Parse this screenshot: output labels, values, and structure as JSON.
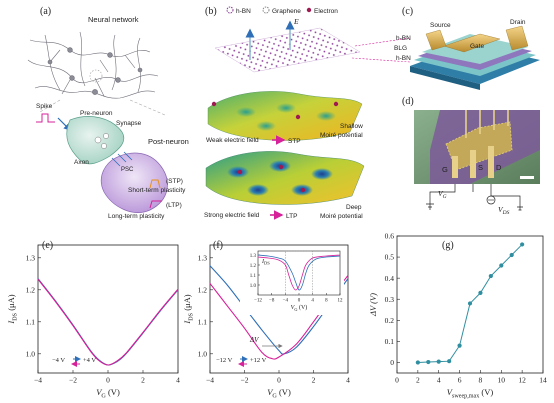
{
  "panel_labels": [
    "(a)",
    "(b)",
    "(c)",
    "(d)",
    "(e)",
    "(f)",
    "(g)"
  ],
  "panel_a": {
    "title": "Neural network",
    "pre_neuron": "Pre-neuron",
    "spike": "Spike",
    "synapse": "Synapse",
    "axon": "Axon",
    "post_neuron": "Post-neuron",
    "psc": "PSC",
    "stp_abbr": "(STP)",
    "stp": "Short-term plasticity",
    "ltp_abbr": "(LTP)",
    "ltp": "Long-term plasticity"
  },
  "panel_b": {
    "legend_hbn": "h-BN",
    "legend_graphene": "Graphene",
    "legend_electron": "Electron",
    "field_symbol": "E",
    "weak_field": "Weak electric field",
    "stp": "STP",
    "shallow": "Shallow",
    "moire_potential_1": "Moiré potential",
    "strong_field": "Strong electric field",
    "ltp": "LTP",
    "deep": "Deep",
    "moire_potential_2": "Moiré potential"
  },
  "panel_c": {
    "source": "Source",
    "drain": "Drain",
    "gate": "Gate",
    "layer_top": "h-BN",
    "layer_mid": "BLG",
    "layer_bot": "h-BN"
  },
  "panel_d": {
    "g": "G",
    "s": "S",
    "d": "D",
    "vg": "V",
    "vg_sub": "G",
    "vds": "V",
    "vds_sub": "DS"
  },
  "colors": {
    "blue": "#2e6fb8",
    "magenta": "#d6219a",
    "pink_arrow": "#e0389c",
    "orange": "#e8921a",
    "purple_lattice": "#8a3b97",
    "point_fill": "#2f8fa0"
  },
  "chart_data": [
    {
      "panel": "(e)",
      "type": "line",
      "xlabel_main": "V",
      "xlabel_sub": "G",
      "xlabel_unit": " (V)",
      "ylabel_main": "I",
      "ylabel_sub": "DS",
      "ylabel_unit": " (μA)",
      "xlim": [
        -4,
        4
      ],
      "ylim": [
        0.94,
        1.34
      ],
      "xticks": [
        -4,
        -2,
        0,
        2,
        4
      ],
      "yticks": [
        1.0,
        1.1,
        1.2,
        1.3
      ],
      "ytick_labels": [
        "1.0",
        "1.1",
        "1.2",
        "1.3"
      ],
      "series": [
        {
          "color": "blue",
          "x": [
            -4,
            -3,
            -2,
            -1,
            -0.5,
            0,
            0.5,
            1,
            2,
            3,
            4
          ],
          "y": [
            1.235,
            1.165,
            1.09,
            1.01,
            0.98,
            0.965,
            0.975,
            0.998,
            1.065,
            1.135,
            1.2
          ]
        },
        {
          "color": "magenta",
          "x": [
            -4,
            -3,
            -2,
            -1,
            -0.5,
            0,
            0.5,
            1,
            2,
            3,
            4
          ],
          "y": [
            1.233,
            1.163,
            1.088,
            1.008,
            0.978,
            0.965,
            0.977,
            1.0,
            1.067,
            1.137,
            1.202
          ]
        }
      ],
      "annotations": {
        "left_value": "−4 V",
        "right_value": "+4 V"
      }
    },
    {
      "panel": "(f)",
      "type": "line",
      "xlabel_main": "V",
      "xlabel_sub": "G",
      "xlabel_unit": " (V)",
      "ylabel_main": "I",
      "ylabel_sub": "DS",
      "ylabel_unit": " (μA)",
      "xlim": [
        -4,
        4
      ],
      "ylim": [
        0.94,
        1.34
      ],
      "xticks": [
        -4,
        -2,
        0,
        2,
        4
      ],
      "yticks": [
        1.0,
        1.1,
        1.2,
        1.3
      ],
      "ytick_labels": [
        "1.0",
        "1.1",
        "1.2",
        "1.3"
      ],
      "series": [
        {
          "color": "blue",
          "x": [
            -4,
            -3,
            -2,
            -1,
            0,
            0.3,
            1,
            2,
            3,
            4
          ],
          "y": [
            1.275,
            1.215,
            1.145,
            1.075,
            1.01,
            1.0,
            1.02,
            1.085,
            1.16,
            1.235
          ]
        },
        {
          "color": "magenta",
          "x": [
            -4,
            -3,
            -2,
            -1,
            -0.4,
            0,
            1,
            2,
            3,
            4
          ],
          "y": [
            1.22,
            1.15,
            1.08,
            1.005,
            0.985,
            0.99,
            1.03,
            1.1,
            1.175,
            1.245
          ]
        }
      ],
      "annotations": {
        "delta": "ΔV",
        "left_value": "−12 V",
        "right_value": "+12 V"
      },
      "inset": {
        "xlim": [
          -12,
          12
        ],
        "ylim": [
          0.9,
          1.34
        ],
        "xticks": [
          -12,
          -8,
          -4,
          0,
          4,
          8,
          12
        ],
        "yticks": [
          1.0,
          1.1,
          1.2,
          1.3
        ],
        "ytick_labels": [
          "1.0",
          "1.1",
          "1.2",
          "1.3"
        ],
        "ylabel_main": "I",
        "ylabel_sub": "DS",
        "xlabel_main": "V",
        "xlabel_sub": "G",
        "xlabel_unit": " (V)",
        "series": [
          {
            "color": "blue",
            "x": [
              -12,
              -9,
              -6,
              -4,
              -2,
              -1,
              0,
              1,
              2,
              3,
              5,
              8,
              12
            ],
            "y": [
              1.3,
              1.29,
              1.27,
              1.24,
              1.12,
              1.03,
              0.95,
              1.0,
              1.12,
              1.2,
              1.26,
              1.28,
              1.29
            ]
          },
          {
            "color": "magenta",
            "x": [
              -12,
              -9,
              -6,
              -4,
              -3,
              -2,
              -1,
              0,
              1,
              2,
              4,
              8,
              12
            ],
            "y": [
              1.28,
              1.27,
              1.25,
              1.2,
              1.1,
              1.0,
              0.95,
              0.99,
              1.1,
              1.2,
              1.27,
              1.29,
              1.3
            ]
          }
        ]
      }
    },
    {
      "panel": "(g)",
      "type": "scatter",
      "xlabel_main": "V",
      "xlabel_sub": "sweep,max",
      "xlabel_unit": " (V)",
      "ylabel": "ΔV (V)",
      "xlim": [
        0,
        14
      ],
      "ylim": [
        -0.05,
        0.6
      ],
      "xticks": [
        0,
        2,
        4,
        6,
        8,
        10,
        12,
        14
      ],
      "yticks": [
        0,
        0.1,
        0.2,
        0.3,
        0.4,
        0.5,
        0.6
      ],
      "ytick_labels": [
        "0",
        "0.1",
        "0.2",
        "0.3",
        "0.4",
        "0.5",
        "0.6"
      ],
      "x": [
        2,
        3,
        4,
        5,
        6,
        7,
        8,
        9,
        10,
        11,
        12
      ],
      "y": [
        0.0,
        0.002,
        0.004,
        0.006,
        0.08,
        0.28,
        0.33,
        0.41,
        0.46,
        0.51,
        0.56
      ]
    }
  ]
}
